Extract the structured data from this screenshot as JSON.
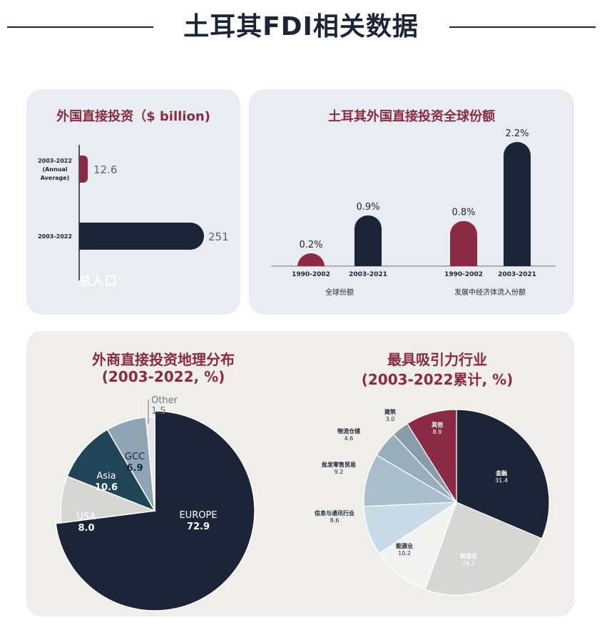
{
  "header": {
    "title": "土耳其FDI相关数据"
  },
  "colors": {
    "navy": "#1c2537",
    "maroon": "#8a2a44",
    "steel": "#1f4556",
    "grey_blue": "#8fa5b4",
    "light_grey": "#d6d6d4",
    "pale_blue": "#c9dbe6"
  },
  "chart_data": [
    {
      "type": "bar",
      "orientation": "horizontal",
      "title": "外国直接投资（$ billion)",
      "categories": [
        "2003-2022 (Annual Average)",
        "2003-2022"
      ],
      "category_lines": [
        [
          "2003-2022",
          "(Annual",
          "Average)"
        ],
        [
          "2003-2022"
        ]
      ],
      "values": [
        12.6,
        251
      ],
      "value_labels": [
        "12.6",
        "251"
      ],
      "bar_colors": [
        "#8a2a44",
        "#1c2537"
      ],
      "xlim": [
        0,
        251
      ],
      "overlay_text": "总人口"
    },
    {
      "type": "bar",
      "title": "土耳其外国直接投资全球份额",
      "categories": [
        "1990-2002",
        "2003-2021",
        "1990-2002",
        "2003-2021"
      ],
      "values": [
        0.2,
        0.9,
        0.8,
        2.2
      ],
      "value_labels": [
        "0.2%",
        "0.9%",
        "0.8%",
        "2.2%"
      ],
      "bar_colors": [
        "#8a2a44",
        "#1c2537",
        "#8a2a44",
        "#1c2537"
      ],
      "groups": [
        "全球份额",
        "发展中经济体流入份额"
      ],
      "ylim": [
        0,
        2.2
      ]
    },
    {
      "type": "pie",
      "title": [
        "外商直接投资地理分布",
        "(2003-2022, %)"
      ],
      "slices": [
        {
          "label": "EUROPE",
          "value": 72.9,
          "value_label": "72.9",
          "color": "#1c2537",
          "text_color": "#ffffff"
        },
        {
          "label": "USA",
          "value": 8.0,
          "value_label": "8.0",
          "color": "#d6d6d4",
          "text_color": "#ffffff"
        },
        {
          "label": "Asia",
          "value": 10.6,
          "value_label": "10.6",
          "color": "#1f4556",
          "text_color": "#ffffff"
        },
        {
          "label": "GCC",
          "value": 6.9,
          "value_label": "6.9",
          "color": "#8fa5b4",
          "text_color": "#1c2537"
        },
        {
          "label": "Other",
          "value": 1.5,
          "value_label": "1.5",
          "color": "#e4e6ea",
          "text_color": "#6c7380"
        }
      ]
    },
    {
      "type": "pie",
      "title": [
        "最具吸引力行业",
        "(2003-2022累计, %)"
      ],
      "slices": [
        {
          "label": "金融",
          "value": 31.4,
          "value_label": "31.4",
          "color": "#1c2537",
          "text_color": "#ffffff"
        },
        {
          "label": "制造业",
          "value": 24.1,
          "value_label": "24.1",
          "color": "#d6d6d4",
          "text_color": "#ffffff"
        },
        {
          "label": "能源业",
          "value": 10.2,
          "value_label": "10.2",
          "color": "#f3f3f1",
          "text_color": "#1c2537"
        },
        {
          "label": "信息与通讯行业",
          "value": 8.6,
          "value_label": "8.6",
          "color": "#c9dbe6",
          "text_color": "#1c2537"
        },
        {
          "label": "批发零售贸易",
          "value": 9.2,
          "value_label": "9.2",
          "color": "#a9bfcc",
          "text_color": "#1c2537"
        },
        {
          "label": "物流仓储",
          "value": 4.6,
          "value_label": "4.6",
          "color": "#98aebc",
          "text_color": "#1c2537"
        },
        {
          "label": "建筑",
          "value": 3.0,
          "value_label": "3.0",
          "color": "#8a9cab",
          "text_color": "#1c2537"
        },
        {
          "label": "其他",
          "value": 8.9,
          "value_label": "8.9",
          "color": "#8a2a44",
          "text_color": "#ffffff"
        }
      ]
    }
  ]
}
